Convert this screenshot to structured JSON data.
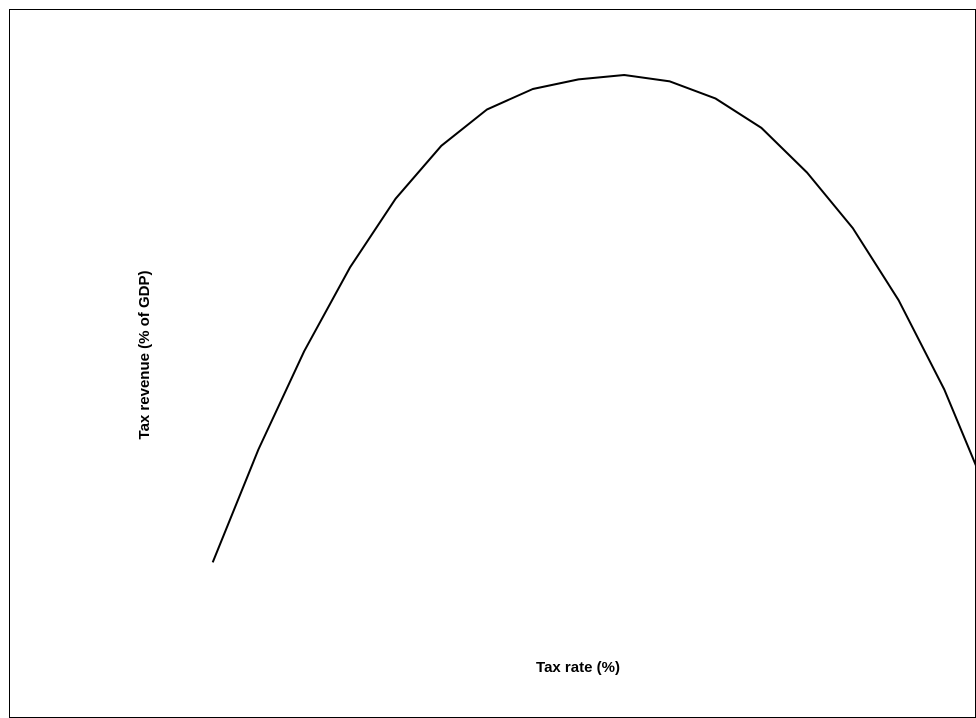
{
  "chart_data": {
    "type": "line",
    "title": "",
    "xlabel": "Tax rate (%)",
    "ylabel": "Tax revenue (% of GDP)",
    "x_ticks_shown": false,
    "y_ticks_shown": false,
    "grid": false,
    "legend": "none",
    "xlim": [
      0,
      18
    ],
    "ylim": [
      0,
      100
    ],
    "series": [
      {
        "color": "#000000",
        "x": [
          1,
          2,
          3,
          4,
          5,
          6,
          7,
          8,
          9,
          10,
          11,
          12,
          13,
          14,
          15,
          16,
          17,
          18
        ],
        "y": [
          14.2,
          31.9,
          47.3,
          60.4,
          71.2,
          79.5,
          85.2,
          88.4,
          89.9,
          90.6,
          89.6,
          86.9,
          82.3,
          75.3,
          66.6,
          55.3,
          41.3,
          24.1
        ]
      }
    ]
  }
}
